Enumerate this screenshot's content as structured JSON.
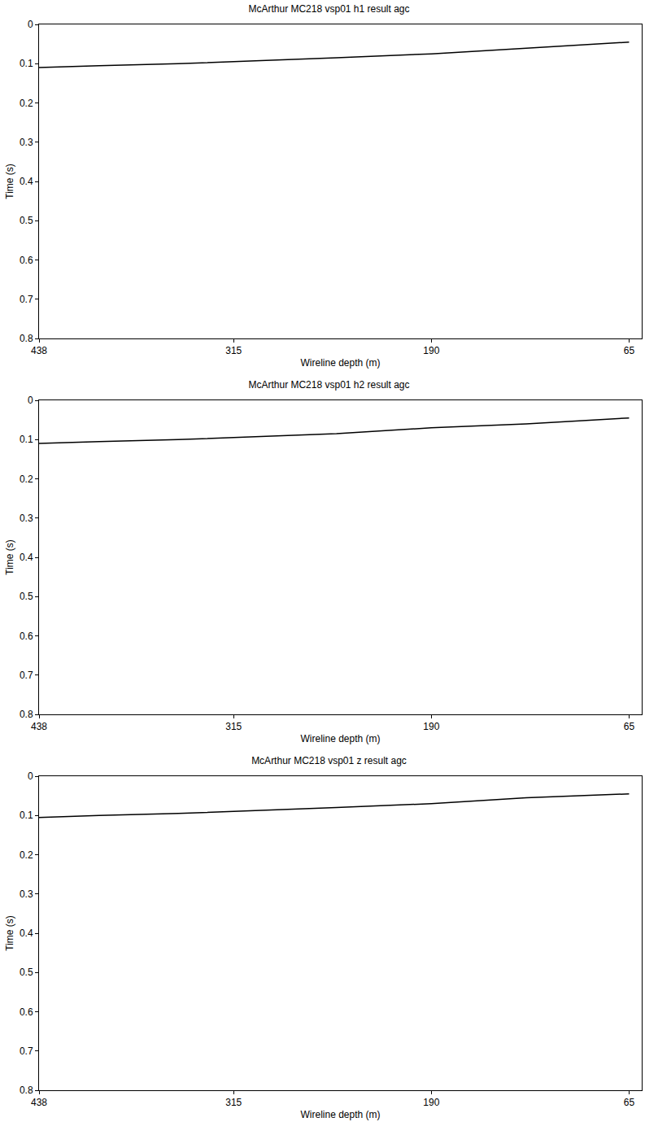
{
  "chart_data": [
    {
      "type": "line",
      "title": "McArthur MC218 vsp01 h1 result agc",
      "x_label": "Wireline depth (m)",
      "y_label": "Time (s)",
      "x": [
        438,
        400,
        350,
        315,
        250,
        190,
        130,
        65
      ],
      "values": [
        0.11,
        0.105,
        0.1,
        0.095,
        0.085,
        0.075,
        0.06,
        0.045
      ],
      "color": "#000000",
      "xlim": [
        438,
        57
      ],
      "xticks": [
        438,
        315,
        190,
        65
      ],
      "ylim": [
        0,
        0.8
      ],
      "yticks": [
        0,
        0.1,
        0.2,
        0.3,
        0.4,
        0.5,
        0.6,
        0.7,
        0.8
      ],
      "grid": false
    },
    {
      "type": "line",
      "title": "McArthur MC218 vsp01 h2 result agc",
      "x_label": "Wireline depth (m)",
      "y_label": "Time (s)",
      "x": [
        438,
        400,
        350,
        315,
        250,
        190,
        130,
        65
      ],
      "values": [
        0.11,
        0.105,
        0.1,
        0.095,
        0.085,
        0.07,
        0.06,
        0.045
      ],
      "color": "#000000",
      "xlim": [
        438,
        57
      ],
      "xticks": [
        438,
        315,
        190,
        65
      ],
      "ylim": [
        0,
        0.8
      ],
      "yticks": [
        0,
        0.1,
        0.2,
        0.3,
        0.4,
        0.5,
        0.6,
        0.7,
        0.8
      ],
      "grid": false
    },
    {
      "type": "line",
      "title": "McArthur MC218 vsp01 z result agc",
      "x_label": "Wireline depth (m)",
      "y_label": "Time (s)",
      "x": [
        438,
        400,
        350,
        315,
        250,
        190,
        130,
        65
      ],
      "values": [
        0.105,
        0.1,
        0.095,
        0.09,
        0.08,
        0.07,
        0.055,
        0.045
      ],
      "color": "#000000",
      "xlim": [
        438,
        57
      ],
      "xticks": [
        438,
        315,
        190,
        65
      ],
      "ylim": [
        0,
        0.8
      ],
      "yticks": [
        0,
        0.1,
        0.2,
        0.3,
        0.4,
        0.5,
        0.6,
        0.7,
        0.8
      ],
      "grid": false
    }
  ]
}
